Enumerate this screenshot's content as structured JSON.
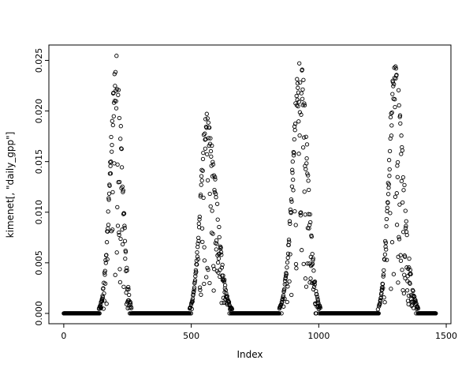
{
  "figure": {
    "background": "#ffffff",
    "foreground": "#000000"
  },
  "chart_data": {
    "type": "scatter",
    "title": "",
    "xlabel": "Index",
    "ylabel": "kimenet[, \"daily_gpp\"]",
    "marker": "open-circle",
    "point_color": "#000000",
    "grid": false,
    "legend": "none",
    "x_range": [
      0,
      1460
    ],
    "y_range": [
      0,
      0.0255
    ],
    "x_ticks": {
      "values": [
        0,
        500,
        1000,
        1500
      ],
      "labels": [
        "0",
        "500",
        "1000",
        "1500"
      ]
    },
    "y_ticks": {
      "values": [
        0,
        0.005,
        0.01,
        0.015,
        0.02,
        0.025
      ],
      "labels": [
        "0.000",
        "0.005",
        "0.010",
        "0.015",
        "0.020",
        "0.025"
      ]
    },
    "n_points": 1460,
    "baseline_value": 0,
    "seed": 42,
    "seasons": [
      {
        "start": 138,
        "peak": 207,
        "end": 268,
        "amplitude": 0.0255
      },
      {
        "start": 492,
        "peak": 562,
        "end": 662,
        "amplitude": 0.0205
      },
      {
        "start": 845,
        "peak": 928,
        "end": 1008,
        "amplitude": 0.0255
      },
      {
        "start": 1232,
        "peak": 1298,
        "end": 1392,
        "amplitude": 0.0245
      }
    ],
    "zero_bands": [
      [
        0,
        137
      ],
      [
        269,
        491
      ],
      [
        663,
        844
      ],
      [
        1009,
        1231
      ],
      [
        1393,
        1459
      ]
    ],
    "noise": {
      "drop_prob_rise": 0.25,
      "drop_prob_fall": 0.5,
      "drop_min": 0.12,
      "drop_max": 0.8,
      "top_min": 0.82,
      "zero_floor": 0.0004
    }
  }
}
